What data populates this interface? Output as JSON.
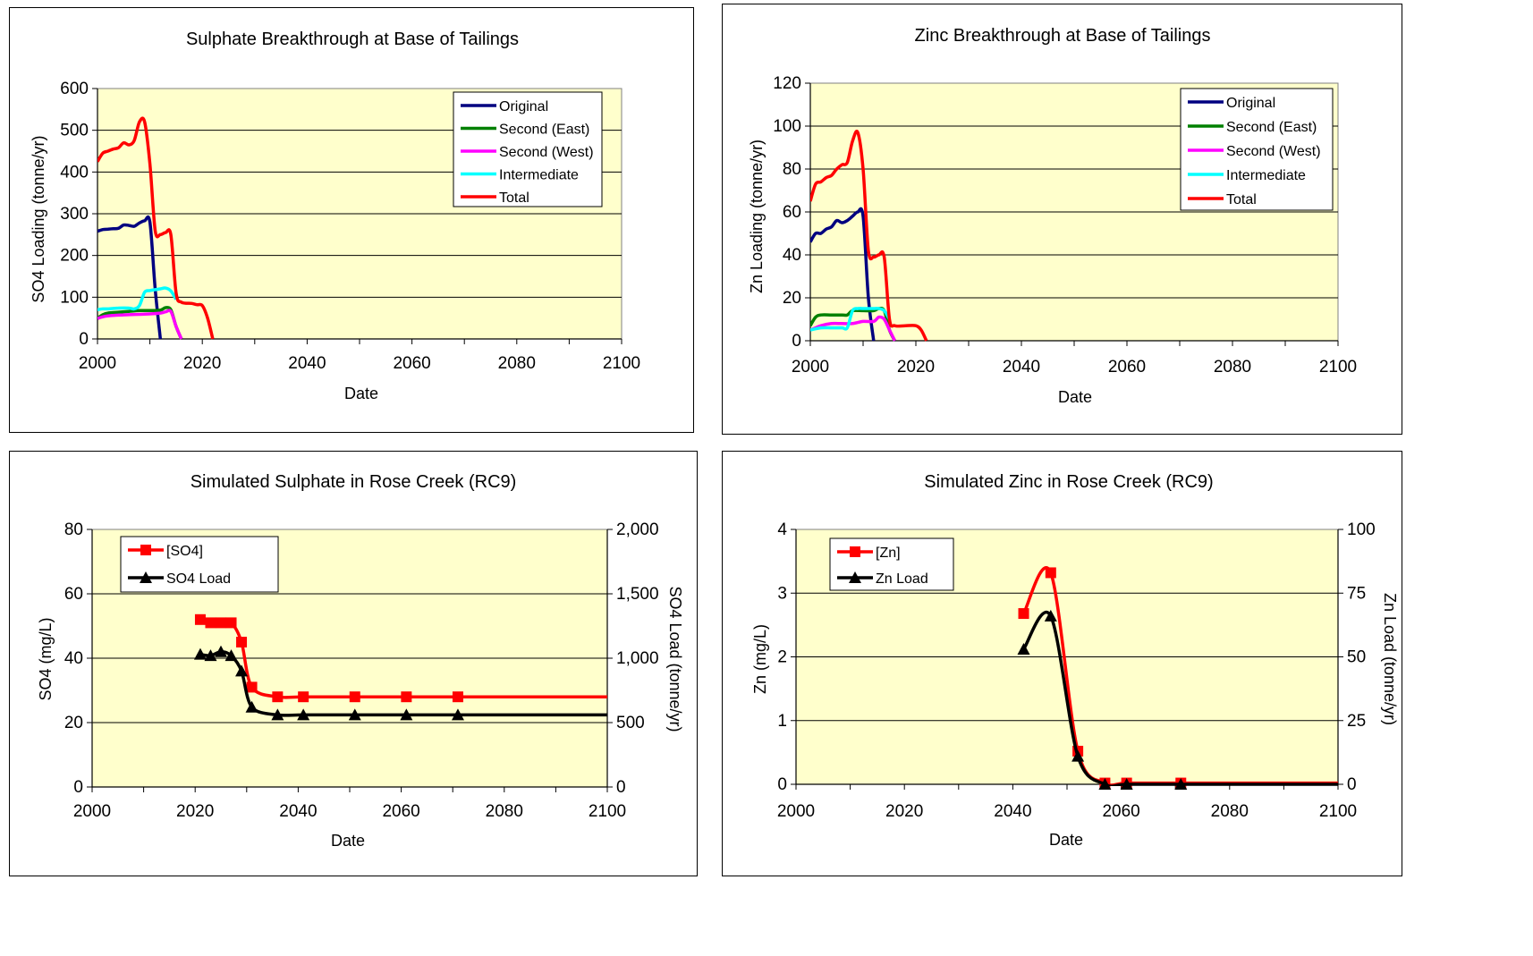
{
  "colors": {
    "plot_bg": "#ffffcc",
    "Original": "#000080",
    "Second (East)": "#008000",
    "Second (West)": "#ff00ff",
    "Intermediate": "#00ffff",
    "Total": "#ff0000",
    "[SO4]": "#ff0000",
    "SO4 Load": "#000000",
    "[Zn]": "#ff0000",
    "Zn Load": "#000000"
  },
  "chart_data": [
    {
      "type": "line",
      "title": "Sulphate Breakthrough at Base of Tailings",
      "xlabel": "Date",
      "ylabel": "SO4 Loading (tonne/yr)",
      "xlim": [
        2000,
        2100
      ],
      "ylim": [
        0,
        600
      ],
      "xticks": [
        "2000",
        "2020",
        "2040",
        "2060",
        "2080",
        "2100"
      ],
      "yticks": [
        "0",
        "100",
        "200",
        "300",
        "400",
        "500",
        "600"
      ],
      "grid": "horizontal",
      "legend": "top-right",
      "series": [
        {
          "name": "Original",
          "x": [
            2000,
            2001,
            2002,
            2003,
            2004,
            2005,
            2006,
            2007,
            2008,
            2009,
            2010,
            2011,
            2012
          ],
          "y": [
            258,
            262,
            263,
            264,
            265,
            273,
            272,
            270,
            278,
            283,
            280,
            120,
            0
          ]
        },
        {
          "name": "Second (East)",
          "x": [
            2000,
            2001,
            2002,
            2004,
            2006,
            2008,
            2010,
            2012,
            2013,
            2014,
            2015,
            2016
          ],
          "y": [
            50,
            58,
            62,
            64,
            66,
            68,
            68,
            69,
            75,
            70,
            30,
            0
          ]
        },
        {
          "name": "Second (West)",
          "x": [
            2000,
            2001,
            2002,
            2004,
            2006,
            2008,
            2010,
            2012,
            2013,
            2014,
            2015,
            2016
          ],
          "y": [
            49,
            53,
            55,
            57,
            58,
            59,
            60,
            62,
            65,
            66,
            30,
            0
          ]
        },
        {
          "name": "Intermediate",
          "x": [
            2000,
            2001,
            2002,
            2004,
            2006,
            2007,
            2008,
            2009,
            2010,
            2011,
            2012,
            2013,
            2014,
            2015
          ],
          "y": [
            70,
            72,
            72,
            74,
            74,
            72,
            80,
            112,
            116,
            118,
            120,
            122,
            115,
            95
          ]
        },
        {
          "name": "Total",
          "x": [
            2000,
            2001,
            2002,
            2003,
            2004,
            2005,
            2006,
            2007,
            2008,
            2009,
            2010,
            2011,
            2012,
            2013,
            2014,
            2015,
            2016,
            2018,
            2019,
            2020,
            2021,
            2022
          ],
          "y": [
            425,
            445,
            450,
            455,
            458,
            470,
            465,
            475,
            520,
            520,
            420,
            260,
            250,
            255,
            250,
            110,
            88,
            85,
            82,
            80,
            50,
            0
          ]
        }
      ]
    },
    {
      "type": "line",
      "title": "Zinc Breakthrough at Base of Tailings",
      "xlabel": "Date",
      "ylabel": "Zn Loading (tonne/yr)",
      "xlim": [
        2000,
        2100
      ],
      "ylim": [
        0,
        120
      ],
      "xticks": [
        "2000",
        "2020",
        "2040",
        "2060",
        "2080",
        "2100"
      ],
      "yticks": [
        "0",
        "20",
        "40",
        "60",
        "80",
        "100",
        "120"
      ],
      "grid": "horizontal",
      "legend": "top-right",
      "series": [
        {
          "name": "Original",
          "x": [
            2000,
            2001,
            2002,
            2003,
            2004,
            2005,
            2006,
            2007,
            2008,
            2009,
            2010,
            2011,
            2012
          ],
          "y": [
            46,
            50,
            50,
            52,
            53,
            56,
            55,
            56,
            58,
            60,
            58,
            20,
            0
          ]
        },
        {
          "name": "Second (East)",
          "x": [
            2000,
            2001,
            2002,
            2004,
            2006,
            2007,
            2008,
            2010,
            2012,
            2013,
            2014,
            2015,
            2016
          ],
          "y": [
            7,
            11,
            12,
            12,
            12,
            12,
            14,
            14,
            14,
            15,
            14,
            5,
            0
          ]
        },
        {
          "name": "Second (West)",
          "x": [
            2000,
            2001,
            2002,
            2004,
            2006,
            2008,
            2010,
            2012,
            2013,
            2014,
            2015,
            2016
          ],
          "y": [
            5,
            6,
            7,
            8,
            8,
            8,
            9,
            9,
            11,
            10,
            5,
            0
          ]
        },
        {
          "name": "Intermediate",
          "x": [
            2000,
            2002,
            2004,
            2006,
            2007,
            2008,
            2009,
            2010,
            2012,
            2013,
            2014,
            2015
          ],
          "y": [
            5,
            6,
            6,
            6,
            6,
            14,
            15,
            15,
            15,
            15,
            14,
            10
          ]
        },
        {
          "name": "Total",
          "x": [
            2000,
            2001,
            2002,
            2003,
            2004,
            2005,
            2006,
            2007,
            2008,
            2009,
            2010,
            2011,
            2012,
            2013,
            2014,
            2015,
            2016,
            2018,
            2020,
            2021,
            2022
          ],
          "y": [
            65,
            73,
            74,
            76,
            77,
            80,
            82,
            83,
            93,
            97,
            80,
            42,
            39,
            40,
            39,
            10,
            7,
            7,
            7,
            5,
            0
          ]
        }
      ]
    },
    {
      "type": "line",
      "title": "Simulated Sulphate in Rose Creek (RC9)",
      "xlabel": "Date",
      "ylabel": "SO4 (mg/L)",
      "y2label": "SO4 Load (tonne/yr)",
      "xlim": [
        2000,
        2100
      ],
      "ylim": [
        0,
        80
      ],
      "y2lim": [
        0,
        2000
      ],
      "xticks": [
        "2000",
        "2020",
        "2040",
        "2060",
        "2080",
        "2100"
      ],
      "yticks": [
        "0",
        "20",
        "40",
        "60",
        "80"
      ],
      "y2ticks": [
        "0",
        "500",
        "1,000",
        "1,500",
        "2,000"
      ],
      "grid": "horizontal",
      "legend": "top-left",
      "series": [
        {
          "name": "[SO4]",
          "axis": "left",
          "marker": "square",
          "x": [
            2021,
            2023,
            2025,
            2027,
            2029,
            2031,
            2036,
            2041,
            2051,
            2061,
            2071
          ],
          "y": [
            52,
            51,
            51,
            51,
            45,
            31,
            28,
            28,
            28,
            28,
            28
          ],
          "continues_to": 2100
        },
        {
          "name": "SO4 Load",
          "axis": "right",
          "marker": "triangle",
          "x": [
            2021,
            2023,
            2025,
            2027,
            2029,
            2031,
            2036,
            2041,
            2051,
            2061,
            2071
          ],
          "y": [
            1030,
            1020,
            1050,
            1020,
            900,
            620,
            560,
            560,
            560,
            560,
            560
          ],
          "continues_to": 2100
        }
      ]
    },
    {
      "type": "line",
      "title": "Simulated Zinc in Rose Creek (RC9)",
      "xlabel": "Date",
      "ylabel": "Zn (mg/L)",
      "y2label": "Zn Load (tonne/yr)",
      "xlim": [
        2000,
        2100
      ],
      "ylim": [
        0,
        4
      ],
      "y2lim": [
        0,
        100
      ],
      "xticks": [
        "2000",
        "2020",
        "2040",
        "2060",
        "2080",
        "2100"
      ],
      "yticks": [
        "0",
        "1",
        "2",
        "3",
        "4"
      ],
      "y2ticks": [
        "0",
        "25",
        "50",
        "75",
        "100"
      ],
      "grid": "horizontal",
      "legend": "top-left",
      "series": [
        {
          "name": "[Zn]",
          "axis": "left",
          "marker": "square",
          "x": [
            2042,
            2047,
            2052,
            2057,
            2061,
            2071
          ],
          "y": [
            2.68,
            3.32,
            0.52,
            0.02,
            0.02,
            0.02
          ],
          "continues_to": 2100
        },
        {
          "name": "Zn Load",
          "axis": "right",
          "marker": "triangle",
          "x": [
            2042,
            2047,
            2052,
            2057,
            2061,
            2071
          ],
          "y": [
            53,
            66,
            11,
            0,
            0,
            0
          ],
          "continues_to": 2100
        }
      ]
    }
  ]
}
